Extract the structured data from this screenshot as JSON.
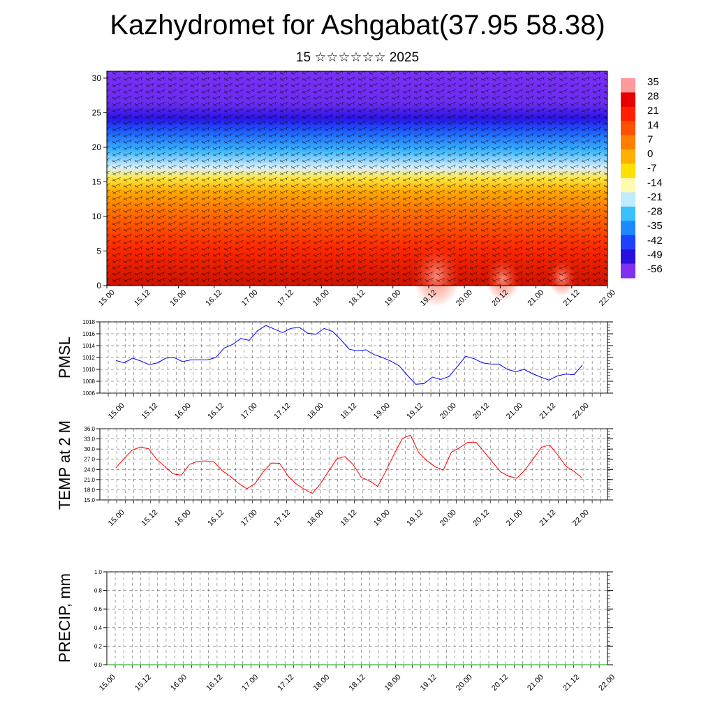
{
  "title": "Kazhydromet for Ashgabat(37.95 58.38)",
  "subtitle": "15 ☆☆☆☆☆☆ 2025",
  "colors": {
    "pmsl_line": "#0000ff",
    "temp_line": "#ff0000",
    "precip_line": "#00a000"
  },
  "chart_data": [
    {
      "type": "heatmap",
      "title": "Kazhydromet for Ashgabat(37.95 58.38)",
      "xlabel": "",
      "ylabel": "",
      "x_ticks": [
        "15.00",
        "15.12",
        "16.00",
        "16.12",
        "17.00",
        "17.12",
        "18.00",
        "18.12",
        "19.00",
        "19.12",
        "20.00",
        "20.12",
        "21.00",
        "21.12",
        "22.00"
      ],
      "y_ticks": [
        0,
        5,
        10,
        15,
        20,
        25,
        30
      ],
      "ylim": [
        0,
        31
      ],
      "colorbar_labels": [
        35,
        28,
        21,
        14,
        7,
        0,
        -7,
        -14,
        -21,
        -28,
        -35,
        -42,
        -49,
        -56
      ],
      "overlay": "wind barbs",
      "grid": false
    },
    {
      "type": "line",
      "ylabel": "PMSL",
      "ylim": [
        1006,
        1018
      ],
      "y_ticks": [
        1006,
        1008,
        1010,
        1012,
        1014,
        1016,
        1018
      ],
      "x_ticks": [
        "15.00",
        "15.12",
        "16.00",
        "16.12",
        "17.00",
        "17.12",
        "18.00",
        "18.12",
        "19.00",
        "19.12",
        "20.00",
        "20.12",
        "21.00",
        "21.12",
        "22.00"
      ],
      "series": [
        {
          "values": [
            1011.5,
            1011.1,
            1011.9,
            1011.4,
            1010.8,
            1011.1,
            1011.9,
            1012.0,
            1011.3,
            1011.6,
            1011.6,
            1011.6,
            1012.0,
            1013.6,
            1014.2,
            1015.2,
            1014.9,
            1016.5,
            1017.4,
            1016.8,
            1016.2,
            1016.9,
            1017.1,
            1016.1,
            1015.9,
            1016.9,
            1016.4,
            1015.0,
            1013.4,
            1013.1,
            1013.3,
            1012.5,
            1012.0,
            1011.4,
            1010.6,
            1009.0,
            1007.5,
            1007.6,
            1008.7,
            1008.3,
            1008.8,
            1010.5,
            1012.2,
            1011.8,
            1011.1,
            1010.9,
            1010.9,
            1010.0,
            1009.6,
            1010.0,
            1009.3,
            1008.7,
            1008.2,
            1008.9,
            1009.2,
            1009.1,
            1010.7
          ]
        }
      ],
      "grid": true
    },
    {
      "type": "line",
      "ylabel": "TEMP at 2 M",
      "ylim": [
        15,
        36
      ],
      "y_ticks": [
        "15.0",
        "18.0",
        "21.0",
        "24.0",
        "27.0",
        "30.0",
        "33.0",
        "36.0"
      ],
      "x_ticks": [
        "15.00",
        "15.12",
        "16.00",
        "16.12",
        "17.00",
        "17.12",
        "18.00",
        "18.12",
        "19.00",
        "19.12",
        "20.00",
        "20.12",
        "21.00",
        "21.12",
        "22.00"
      ],
      "series": [
        {
          "values": [
            24.5,
            27.2,
            29.7,
            30.6,
            30.1,
            26.9,
            24.8,
            22.7,
            22.3,
            25.5,
            26.4,
            26.5,
            26.2,
            23.6,
            21.9,
            19.9,
            18.3,
            19.8,
            23.3,
            25.9,
            25.8,
            22.2,
            19.8,
            18.2,
            16.9,
            19.8,
            23.5,
            27.1,
            27.8,
            25.4,
            21.6,
            20.6,
            19.0,
            23.5,
            28.5,
            33.1,
            34.1,
            29.0,
            26.6,
            24.8,
            23.8,
            29.1,
            30.4,
            32.0,
            32.0,
            29.2,
            26.2,
            23.3,
            22.0,
            21.4,
            23.9,
            27.1,
            30.5,
            31.2,
            28.3,
            24.9,
            23.4,
            21.4
          ]
        }
      ],
      "grid": true
    },
    {
      "type": "line",
      "ylabel": "PRECIP, mm",
      "ylim": [
        0,
        1
      ],
      "y_ticks": [
        "0.0",
        "0.2",
        "0.4",
        "0.6",
        "0.8",
        "1.0"
      ],
      "x_ticks": [
        "15.00",
        "15.12",
        "16.00",
        "16.12",
        "17.00",
        "17.12",
        "18.00",
        "18.12",
        "19.00",
        "19.12",
        "20.00",
        "20.12",
        "21.00",
        "21.12",
        "22.00"
      ],
      "series": [
        {
          "values": [
            0,
            0,
            0,
            0,
            0,
            0,
            0,
            0,
            0,
            0,
            0,
            0,
            0,
            0,
            0,
            0,
            0,
            0,
            0,
            0,
            0,
            0,
            0,
            0,
            0,
            0,
            0,
            0,
            0,
            0,
            0,
            0,
            0,
            0,
            0,
            0,
            0,
            0,
            0,
            0,
            0,
            0,
            0,
            0,
            0,
            0,
            0,
            0,
            0,
            0,
            0,
            0,
            0,
            0,
            0,
            0,
            0,
            0,
            0
          ]
        }
      ],
      "grid": true
    }
  ]
}
